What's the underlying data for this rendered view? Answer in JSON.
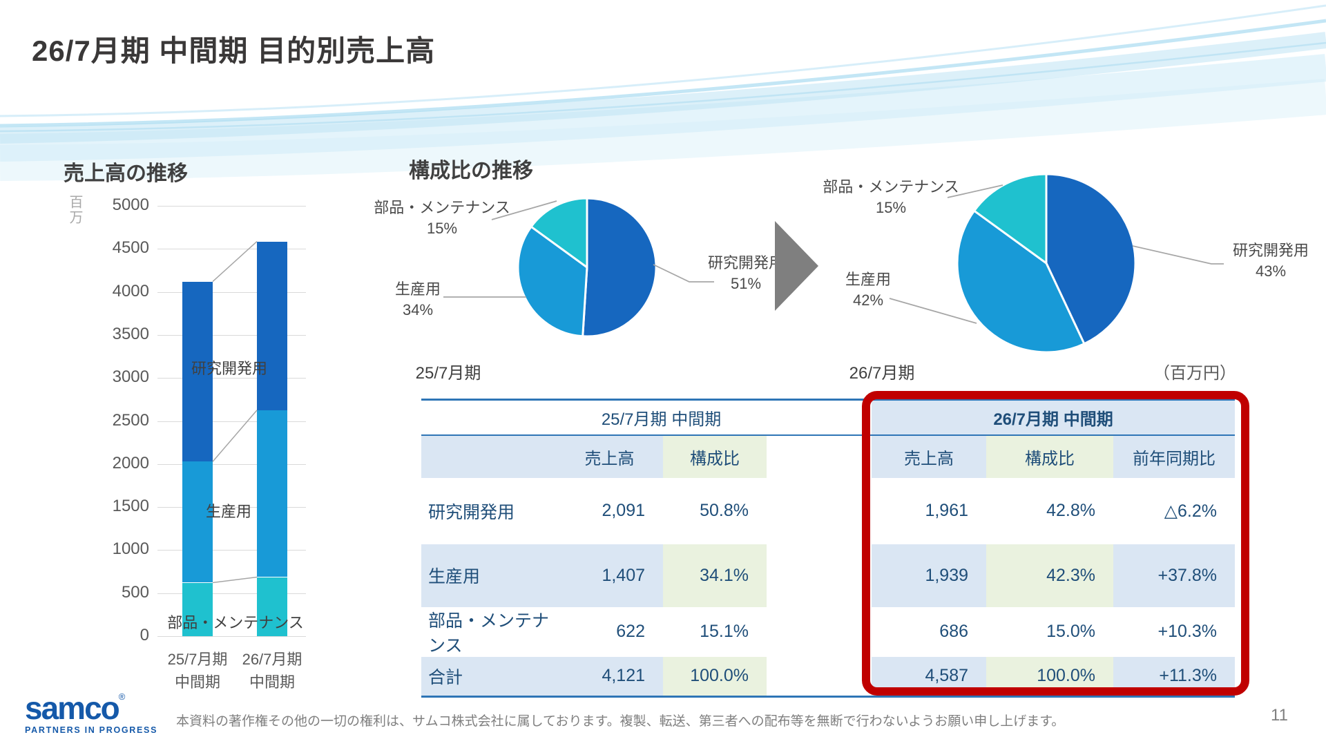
{
  "slide": {
    "title": "26/7月期 中間期 目的別売上高",
    "page_number": "11",
    "copyright": "本資料の著作権その他の一切の権利は、サムコ株式会社に属しております。複製、転送、第三者への配布等を無断で行わないようお願い申し上げます。",
    "logo": {
      "wordmark": "samco",
      "registered": "®",
      "tagline": "PARTNERS IN PROGRESS"
    }
  },
  "colors": {
    "research_blue": "#1667bf",
    "production_blue": "#189ad7",
    "parts_cyan": "#1fc1cf",
    "table_line_blue": "#2e75b6",
    "cell_blue": "#dae6f3",
    "cell_green": "#eaf2df",
    "highlight_red": "#c00000",
    "logo_blue": "#1559a9",
    "arrow_gray": "#7f7f7f"
  },
  "chart_data": [
    {
      "type": "bar",
      "stacked": true,
      "title": "売上高の推移",
      "unit": "百万",
      "categories": [
        [
          "25/7月期",
          "中間期"
        ],
        [
          "26/7月期",
          "中間期"
        ]
      ],
      "series": [
        {
          "name": "部品・メンテナンス",
          "values": [
            622,
            686
          ],
          "color": "#1fc1cf"
        },
        {
          "name": "生産用",
          "values": [
            1407,
            1939
          ],
          "color": "#189ad7"
        },
        {
          "name": "研究開発用",
          "values": [
            2091,
            1961
          ],
          "color": "#1667bf"
        }
      ],
      "ylim": [
        0,
        5000
      ],
      "ytick": 500,
      "grid": true,
      "legend_position": "inside"
    },
    {
      "type": "pie",
      "title": "構成比の推移",
      "caption": "25/7月期",
      "labels": [
        "研究開発用",
        "生産用",
        "部品・メンテナンス"
      ],
      "values": [
        51,
        34,
        15
      ],
      "pcts": [
        "51%",
        "34%",
        "15%"
      ],
      "colors": [
        "#1667bf",
        "#189ad7",
        "#1fc1cf"
      ]
    },
    {
      "type": "pie",
      "caption": "26/7月期",
      "labels": [
        "研究開発用",
        "生産用",
        "部品・メンテナンス"
      ],
      "values": [
        43,
        42,
        15
      ],
      "pcts": [
        "43%",
        "42%",
        "15%"
      ],
      "colors": [
        "#1667bf",
        "#189ad7",
        "#1fc1cf"
      ]
    },
    {
      "type": "table",
      "unit_note": "（百万円）",
      "col_groups": [
        "25/7月期 中間期",
        "26/7月期 中間期"
      ],
      "columns": [
        "売上高",
        "構成比",
        "売上高",
        "構成比",
        "前年同期比"
      ],
      "rows": [
        {
          "label": "研究開発用",
          "cells": [
            "2,091",
            "50.8%",
            "1,961",
            "42.8%",
            "△6.2%"
          ]
        },
        {
          "label": "生産用",
          "cells": [
            "1,407",
            "34.1%",
            "1,939",
            "42.3%",
            "+37.8%"
          ]
        },
        {
          "label": "部品・メンテナンス",
          "cells": [
            "622",
            "15.1%",
            "686",
            "15.0%",
            "+10.3%"
          ]
        },
        {
          "label": "合計",
          "cells": [
            "4,121",
            "100.0%",
            "4,587",
            "100.0%",
            "+11.3%"
          ]
        }
      ]
    }
  ]
}
